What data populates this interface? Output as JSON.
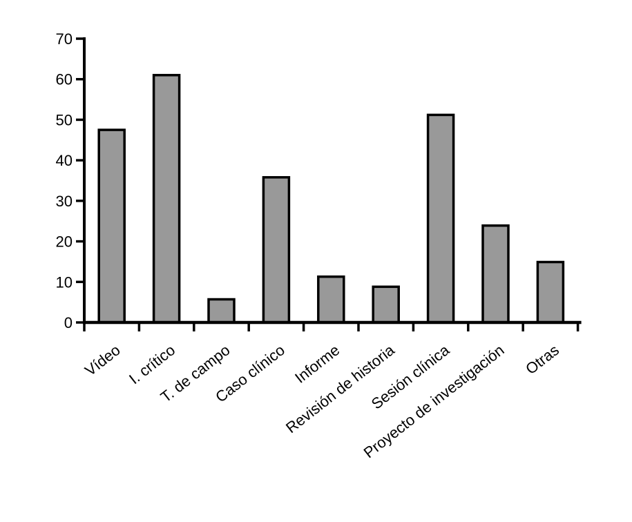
{
  "chart_data": {
    "type": "bar",
    "title": "",
    "xlabel": "",
    "ylabel": "",
    "categories": [
      "Vídeo",
      "I. crítico",
      "T. de campo",
      "Caso clínico",
      "Informe",
      "Revisión de historia",
      "Sesión clínica",
      "Proyecto de investigación",
      "Otras"
    ],
    "values": [
      47.5,
      61,
      5.7,
      35.8,
      11.3,
      8.8,
      51.2,
      23.9,
      14.9
    ],
    "ylim": [
      0,
      70
    ],
    "y_ticks": [
      0,
      10,
      20,
      30,
      40,
      50,
      60,
      70
    ],
    "grid": false,
    "legend_position": "none",
    "x_label_rotation_deg": -38,
    "colors": {
      "bar_fill": "#999999",
      "bar_stroke": "#000000",
      "axis": "#000000",
      "text": "#000000",
      "background": "#ffffff"
    }
  }
}
